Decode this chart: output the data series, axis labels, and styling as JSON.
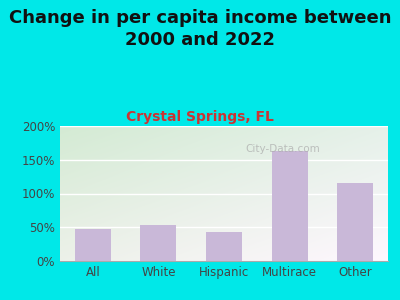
{
  "title": "Change in per capita income between\n2000 and 2022",
  "subtitle": "Crystal Springs, FL",
  "categories": [
    "All",
    "White",
    "Hispanic",
    "Multirace",
    "Other"
  ],
  "values": [
    48,
    54,
    43,
    163,
    115
  ],
  "bar_color": "#c9b8d8",
  "title_fontsize": 13,
  "subtitle_fontsize": 10,
  "subtitle_color": "#cc3333",
  "title_color": "#111111",
  "bg_outer": "#00e8e8",
  "ylim": [
    0,
    200
  ],
  "yticks": [
    0,
    50,
    100,
    150,
    200
  ],
  "ytick_labels": [
    "0%",
    "50%",
    "100%",
    "150%",
    "200%"
  ],
  "watermark": "City-Data.com"
}
